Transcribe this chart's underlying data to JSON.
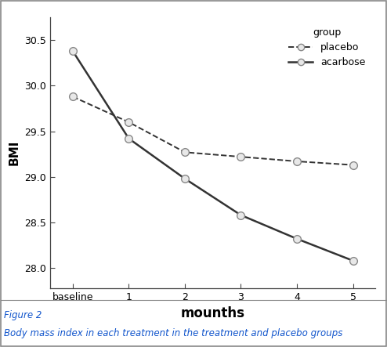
{
  "x_labels": [
    "baseline",
    "1",
    "2",
    "3",
    "4",
    "5"
  ],
  "x_numeric": [
    0,
    1,
    2,
    3,
    4,
    5
  ],
  "placebo_y": [
    29.88,
    29.6,
    29.27,
    29.22,
    29.17,
    29.13
  ],
  "acarbose_y": [
    30.38,
    29.42,
    28.98,
    28.58,
    28.32,
    28.08
  ],
  "xlabel": "mounths",
  "ylabel": "BMI",
  "legend_title": "group",
  "legend_placebo": "placebo",
  "legend_acarbose": "acarbose",
  "ylim_min": 27.78,
  "ylim_max": 30.75,
  "yticks": [
    28.0,
    28.5,
    29.0,
    29.5,
    30.0,
    30.5
  ],
  "line_color": "#333333",
  "marker_facecolor": "#e8e8e8",
  "marker_edgecolor": "#888888",
  "bg_color": "#ffffff",
  "caption_line1": "Figure 2",
  "caption_line2": "Body mass index in each treatment in the treatment and placebo groups",
  "caption_color": "#1155cc",
  "border_color": "#888888",
  "xlabel_fontsize": 12,
  "ylabel_fontsize": 11,
  "tick_fontsize": 9,
  "legend_fontsize": 9,
  "caption_fontsize": 8.5
}
